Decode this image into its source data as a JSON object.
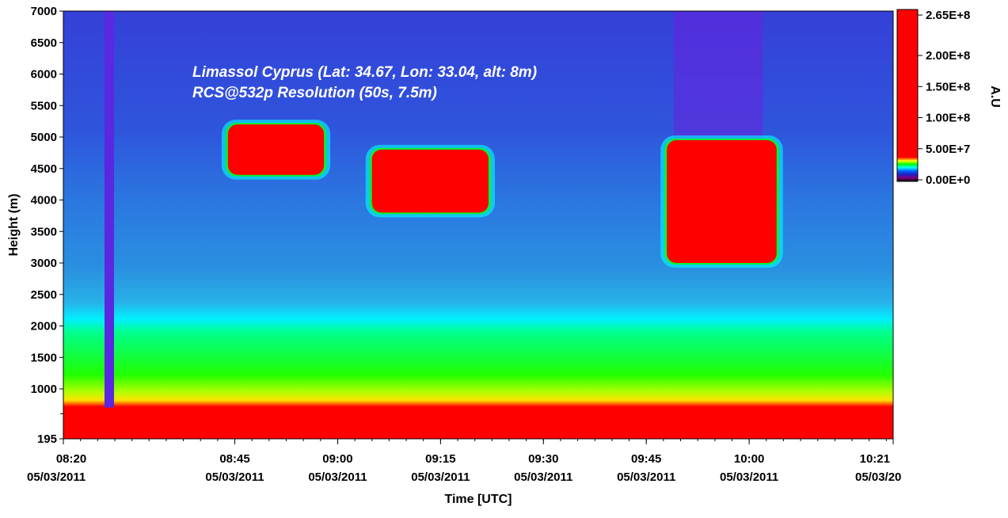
{
  "chart_data": {
    "type": "heatmap",
    "title": "",
    "annotation_lines": [
      "Limassol Cyprus (Lat: 34.67, Lon: 33.04, alt: 8m)",
      "RCS@532p Resolution (50s, 7.5m)"
    ],
    "xlabel": "Time [UTC]",
    "ylabel": "Height (m)",
    "ylim": [
      195,
      7000
    ],
    "xlim": [
      "08:20",
      "10:21"
    ],
    "x_ticks": [
      {
        "time": "08:20",
        "date": "05/03/2011"
      },
      {
        "time": "08:45",
        "date": "05/03/2011"
      },
      {
        "time": "09:00",
        "date": "05/03/2011"
      },
      {
        "time": "09:15",
        "date": "05/03/2011"
      },
      {
        "time": "09:30",
        "date": "05/03/2011"
      },
      {
        "time": "09:45",
        "date": "05/03/2011"
      },
      {
        "time": "10:00",
        "date": "05/03/2011"
      },
      {
        "time": "10:21",
        "date": "05/03/20"
      }
    ],
    "y_ticks": [
      7000,
      6500,
      6000,
      5500,
      5000,
      4500,
      4000,
      3500,
      3000,
      2500,
      2000,
      1500,
      1000,
      195
    ],
    "colorbar": {
      "title": "A.U",
      "labels": [
        "2.65E+8",
        "2.00E+8",
        "1.50E+8",
        "1.00E+8",
        "5.00E+7",
        "0.00E+0"
      ],
      "values": [
        265000000,
        200000000,
        150000000,
        100000000,
        50000000,
        0
      ]
    },
    "features": [
      {
        "name": "boundary-layer",
        "height_range": [
          195,
          900
        ],
        "level": "max"
      },
      {
        "name": "aerosol-layer",
        "height_range": [
          900,
          2100
        ],
        "level": "mid"
      },
      {
        "name": "cloud",
        "time_range": [
          "08:44",
          "08:58"
        ],
        "height_range": [
          4400,
          5200
        ]
      },
      {
        "name": "cloud",
        "time_range": [
          "09:05",
          "09:22"
        ],
        "height_range": [
          3800,
          4800
        ]
      },
      {
        "name": "cloud",
        "time_range": [
          "09:48",
          "10:04"
        ],
        "height_range": [
          3000,
          4950
        ]
      }
    ]
  },
  "colors": {
    "red": "#ff0000",
    "blue": "#2a3ee0",
    "cyan": "#00ffff",
    "green": "#00ff00",
    "purple": "#6a20e0"
  }
}
